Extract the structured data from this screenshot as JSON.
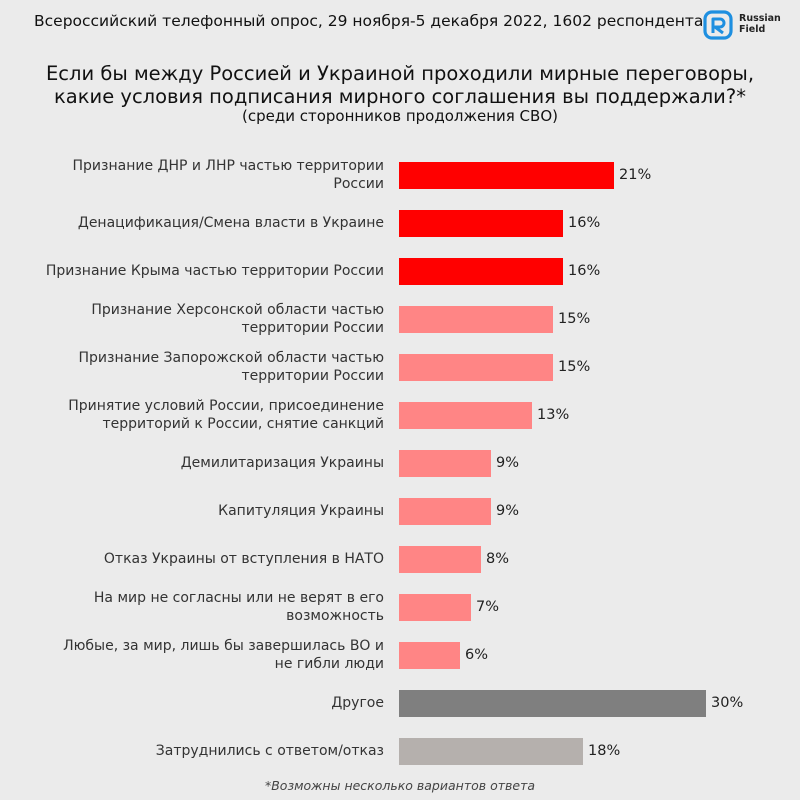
{
  "header": {
    "survey_info": "Всероссийский телефонный опрос, 29 ноября-5 декабря 2022, 1602 респондента",
    "logo_line1": "Russian",
    "logo_line2": "Field",
    "logo_icon": "russian-field-logo"
  },
  "colors": {
    "background": "#ebebeb",
    "top_red": "#ff0000",
    "light_red": "#ff8585",
    "dark_gray": "#7f7f7f",
    "light_gray": "#b5b0ad"
  },
  "chart_data": {
    "type": "bar",
    "orientation": "horizontal",
    "title_line1": "Если бы между Россией и Украиной проходили мирные переговоры,",
    "title_line2": "какие условия подписания мирного соглашения вы поддержали?*",
    "subtitle": "(среди сторонников продолжения СВО)",
    "footnote": "*Возможны несколько вариантов ответа",
    "unit": "%",
    "xlim": [
      0,
      30
    ],
    "grid": false,
    "categories": [
      "Признание ДНР и ЛНР частью территории России",
      "Денацификация/Смена власти в Украине",
      "Признание Крыма частью территории России",
      "Признание Херсонской области частью территории России",
      "Признание Запорожской области частью территории России",
      "Принятие условий России, присоединение территорий к России, снятие санкций",
      "Демилитаризация Украины",
      "Капитуляция Украины",
      "Отказ Украины от вступления в НАТО",
      "На мир не согласны или не верят в его возможность",
      "Любые, за мир, лишь бы завершилась ВО и не гибли люди",
      "Другое",
      "Затруднились с ответом/отказ"
    ],
    "label_lines": [
      [
        "Признание ДНР и ЛНР частью территории",
        "России"
      ],
      [
        "Денацификация/Смена власти в Украине"
      ],
      [
        "Признание Крыма частью территории России"
      ],
      [
        "Признание Херсонской области частью",
        "территории России"
      ],
      [
        "Признание Запорожской области частью",
        "территории России"
      ],
      [
        "Принятие условий России, присоединение",
        "территорий к России, снятие санкций"
      ],
      [
        "Демилитаризация Украины"
      ],
      [
        "Капитуляция Украины"
      ],
      [
        "Отказ Украины от вступления в НАТО"
      ],
      [
        "На мир не согласны или не верят в его",
        "возможность"
      ],
      [
        "Любые, за мир, лишь бы завершилась ВО и",
        "не гибли люди"
      ],
      [
        "Другое"
      ],
      [
        "Затруднились с ответом/отказ"
      ]
    ],
    "values": [
      21,
      16,
      16,
      15,
      15,
      13,
      9,
      9,
      8,
      7,
      6,
      30,
      18
    ],
    "value_labels": [
      "21%",
      "16%",
      "16%",
      "15%",
      "15%",
      "13%",
      "9%",
      "9%",
      "8%",
      "7%",
      "6%",
      "30%",
      "18%"
    ],
    "bar_colors": [
      "#ff0000",
      "#ff0000",
      "#ff0000",
      "#ff8585",
      "#ff8585",
      "#ff8585",
      "#ff8585",
      "#ff8585",
      "#ff8585",
      "#ff8585",
      "#ff8585",
      "#7f7f7f",
      "#b5b0ad"
    ]
  }
}
